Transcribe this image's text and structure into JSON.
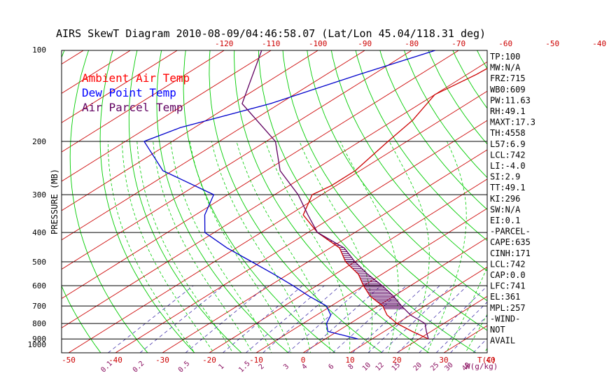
{
  "chart_data": {
    "type": "line",
    "title": "AIRS SkewT Diagram 2010-08-09/04:46:58.07 (Lat/Lon 45.04/118.31 deg)",
    "ylabel": "PRESSURE (MB)",
    "top_axis_ticks": [
      "-120",
      "-110",
      "-100",
      "-90",
      "-80",
      "-70",
      "-60",
      "-50",
      "-40"
    ],
    "top_axis_values": [
      -120,
      -110,
      -100,
      -90,
      -80,
      -70,
      -60,
      -50,
      -40
    ],
    "bottom_axis_ticks": [
      "-50",
      "-40",
      "-30",
      "-20",
      "-10",
      "0",
      "10",
      "20",
      "30",
      "40"
    ],
    "bottom_axis_values": [
      -50,
      -40,
      -30,
      -20,
      -10,
      0,
      10,
      20,
      30,
      40
    ],
    "bottom_axis_unit": "T(C)",
    "pressure_ticks": [
      "100",
      "200",
      "300",
      "400",
      "500",
      "600",
      "700",
      "800",
      "900",
      "1000"
    ],
    "pressure_values": [
      100,
      200,
      300,
      400,
      500,
      600,
      700,
      800,
      900,
      1000
    ],
    "mixing_ratio_ticks": [
      "0.1",
      "0.2",
      "0.5",
      "1",
      "1.5",
      "2",
      "3",
      "4",
      "6",
      "8",
      "10",
      "12",
      "15",
      "20",
      "25",
      "30",
      "40"
    ],
    "mixing_ratio_values": [
      0.1,
      0.2,
      0.5,
      1,
      1.5,
      2,
      3,
      4,
      6,
      8,
      10,
      12,
      15,
      20,
      25,
      30,
      40
    ],
    "mixing_ratio_unit": "W(g/kg)",
    "legend": [
      {
        "label": "Ambient Air Temp",
        "color": "#ff0000"
      },
      {
        "label": "Dew Point Temp",
        "color": "#0000ff"
      },
      {
        "label": "Air Parcel Temp",
        "color": "#600060"
      }
    ],
    "series": [
      {
        "name": "Ambient Air Temp",
        "color": "#cc0000",
        "points": [
          [
            100,
            -57
          ],
          [
            120,
            -58
          ],
          [
            140,
            -60
          ],
          [
            170,
            -56
          ],
          [
            200,
            -54
          ],
          [
            250,
            -51
          ],
          [
            280,
            -51
          ],
          [
            300,
            -52
          ],
          [
            350,
            -47
          ],
          [
            400,
            -38
          ],
          [
            450,
            -28
          ],
          [
            500,
            -22
          ],
          [
            550,
            -15
          ],
          [
            600,
            -10
          ],
          [
            650,
            -5
          ],
          [
            700,
            1
          ],
          [
            750,
            5
          ],
          [
            800,
            10
          ],
          [
            850,
            16
          ],
          [
            900,
            22
          ]
        ]
      },
      {
        "name": "Dew Point Temp",
        "color": "#0000cc",
        "points": [
          [
            100,
            -75
          ],
          [
            120,
            -83
          ],
          [
            150,
            -92
          ],
          [
            180,
            -103
          ],
          [
            200,
            -106
          ],
          [
            250,
            -92
          ],
          [
            300,
            -73
          ],
          [
            350,
            -68
          ],
          [
            400,
            -62
          ],
          [
            450,
            -52
          ],
          [
            500,
            -42
          ],
          [
            550,
            -33
          ],
          [
            600,
            -25
          ],
          [
            650,
            -18
          ],
          [
            700,
            -11
          ],
          [
            750,
            -7
          ],
          [
            800,
            -5
          ],
          [
            850,
            -2
          ],
          [
            900,
            7
          ]
        ]
      },
      {
        "name": "Air Parcel Temp",
        "color": "#600060",
        "points": [
          [
            100,
            -112
          ],
          [
            150,
            -98
          ],
          [
            200,
            -78
          ],
          [
            250,
            -67
          ],
          [
            300,
            -55
          ],
          [
            350,
            -46
          ],
          [
            400,
            -38
          ],
          [
            450,
            -27
          ],
          [
            500,
            -20
          ],
          [
            550,
            -13
          ],
          [
            600,
            -6
          ],
          [
            650,
            0
          ],
          [
            700,
            5
          ],
          [
            750,
            10
          ],
          [
            800,
            16
          ],
          [
            850,
            19
          ],
          [
            900,
            22
          ]
        ]
      }
    ],
    "cape_shaded_range_mb": [
      400,
      720
    ]
  },
  "indices": [
    "TP:100",
    "MW:N/A",
    "FRZ:715",
    "WB0:609",
    "PW:11.63",
    "RH:49.1",
    "MAXT:17.3",
    "TH:4558",
    "L57:6.9",
    "LCL:742",
    "LI:-4.0",
    "SI:2.9",
    "TT:49.1",
    "KI:296",
    "SW:N/A",
    "EI:0.1",
    "-PARCEL-",
    "CAPE:635",
    "CINH:171",
    "LCL:742",
    "CAP:0.0",
    "LFC:741",
    "EL:361",
    "MPL:257",
    "-WIND-",
    "NOT",
    "AVAIL"
  ],
  "colors": {
    "isotherm": "#cc0000",
    "dry_adiabat": "#00cc00",
    "moist_adiabat": "#00cc00",
    "mixing_ratio": "#4433aa",
    "isobar": "#000000",
    "hatch": "#5a0060",
    "mixing_label": "#8a1060"
  }
}
